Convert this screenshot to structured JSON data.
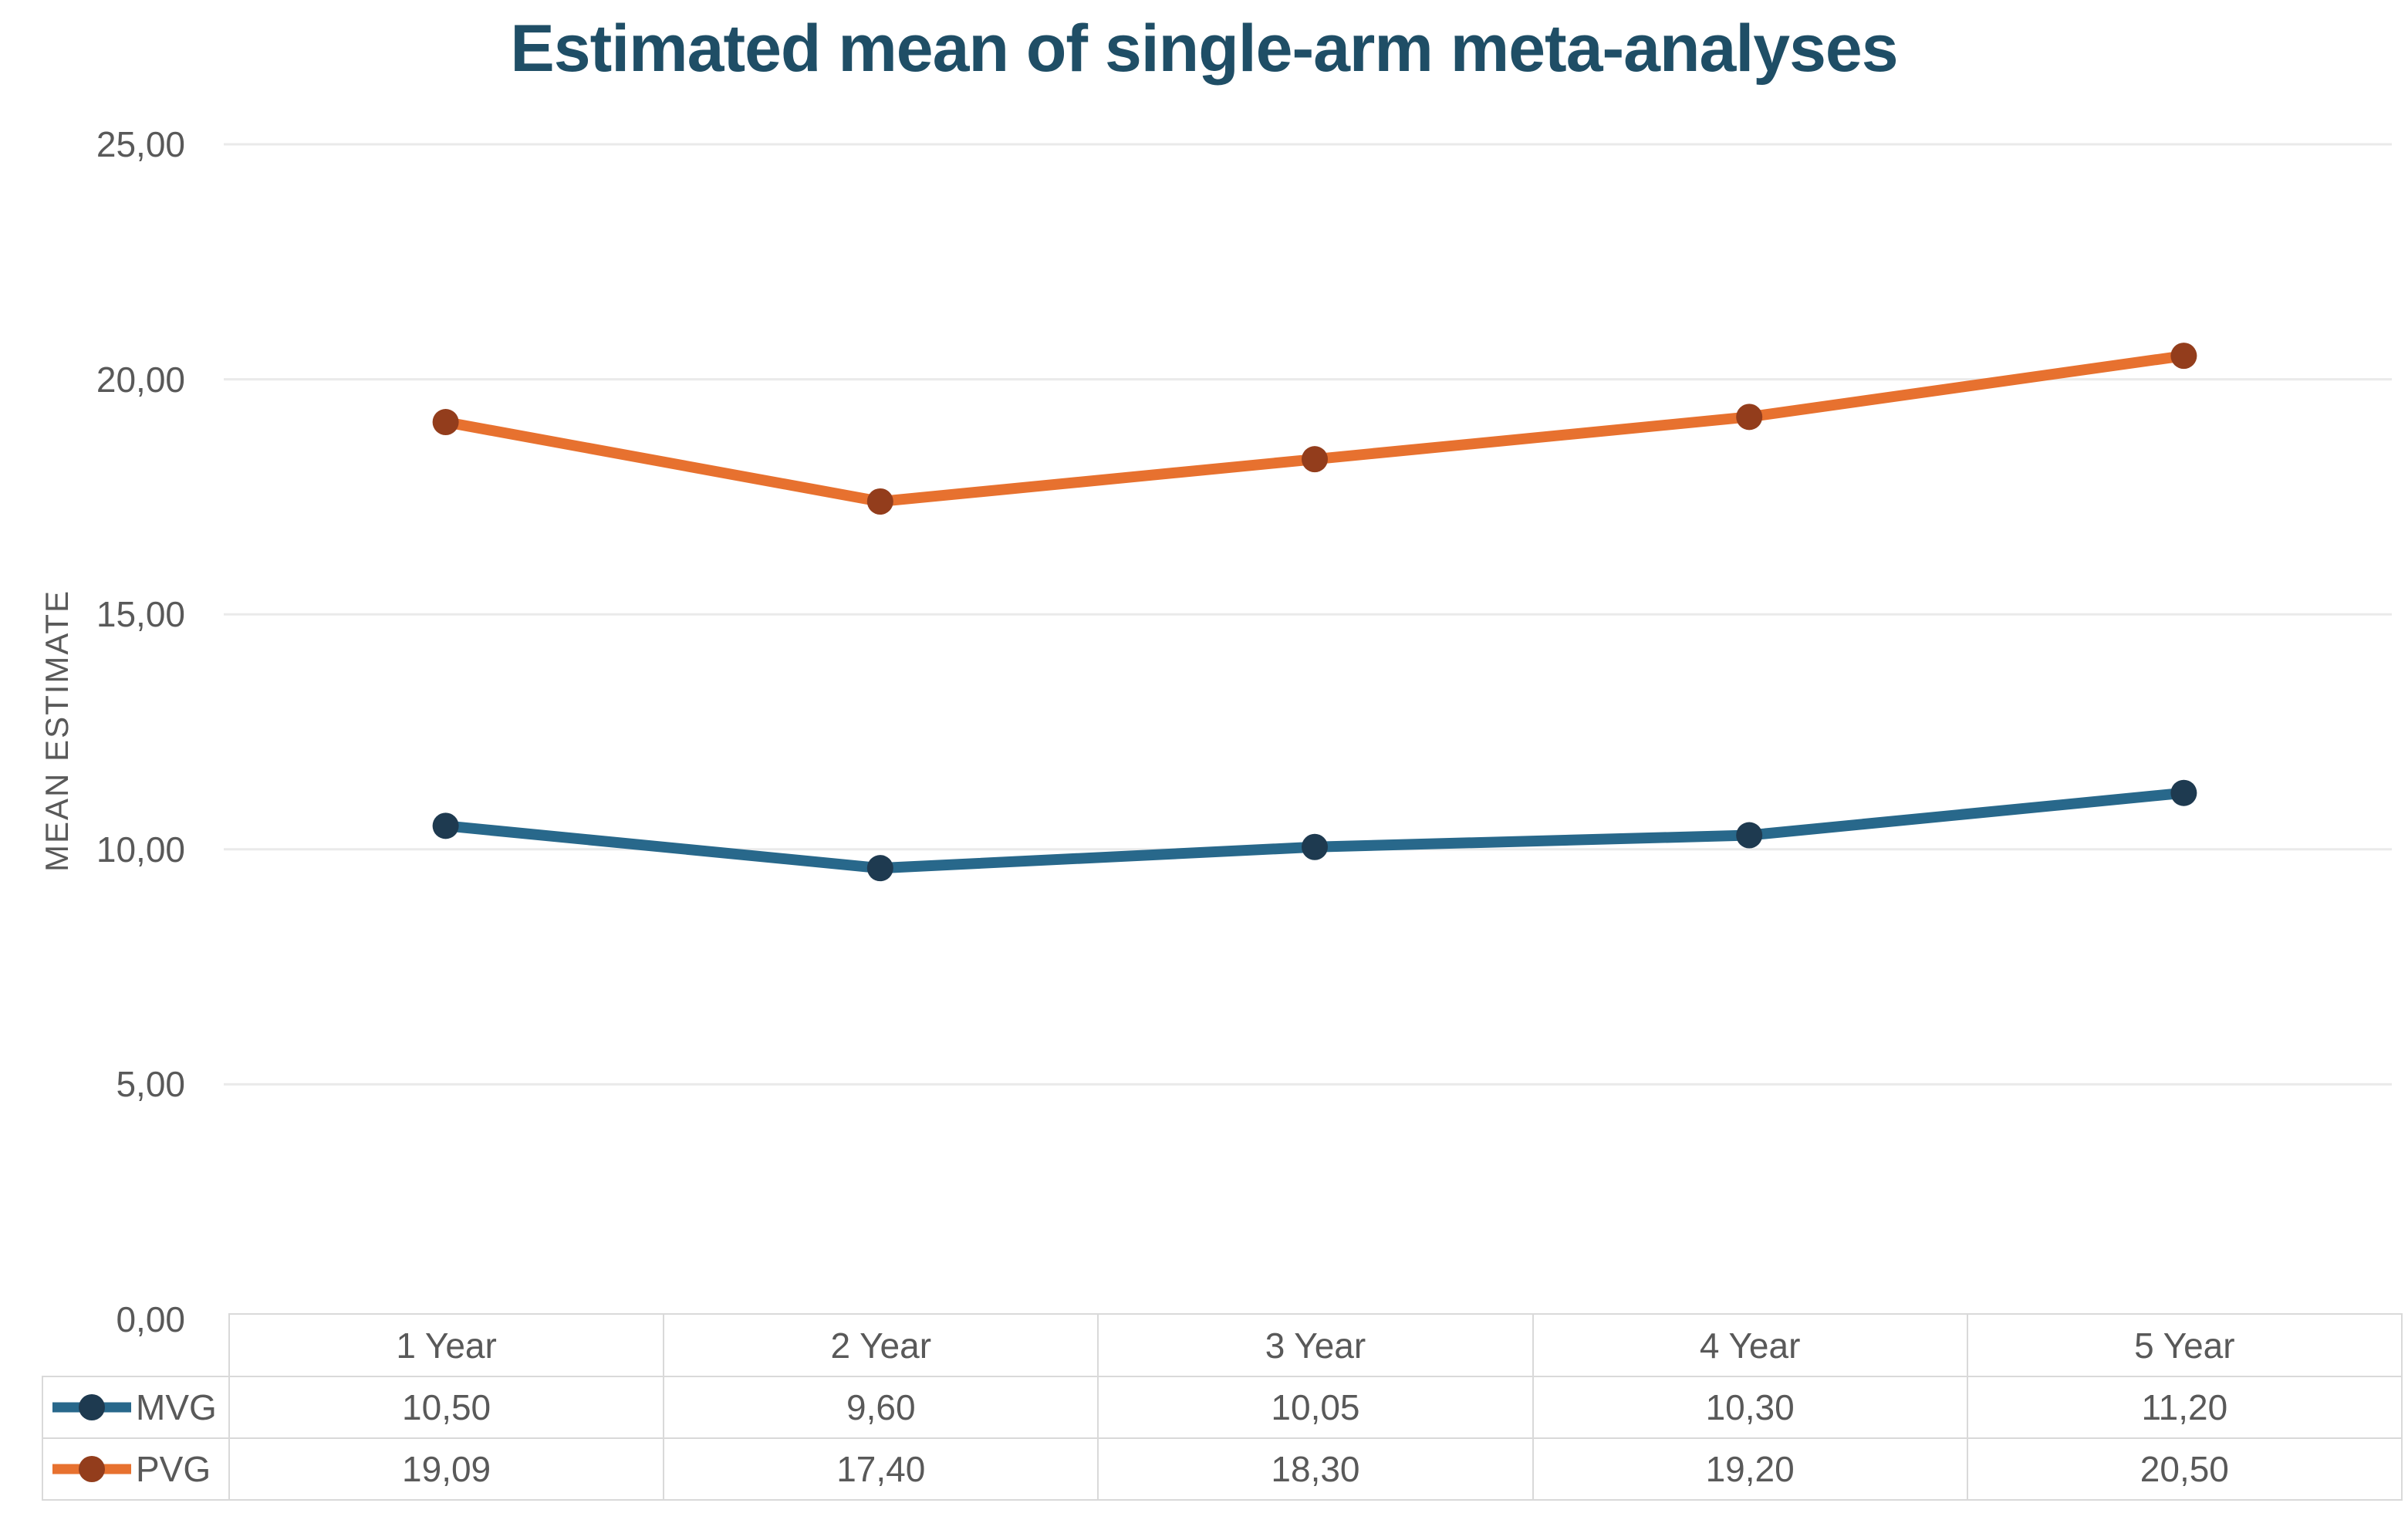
{
  "chart_data": {
    "type": "line",
    "title": "Estimated mean of single-arm meta-analyses",
    "ylabel": "MEAN ESTIMATE",
    "xlabel": "",
    "categories": [
      "1 Year",
      "2 Year",
      "3 Year",
      "4 Year",
      "5 Year"
    ],
    "series": [
      {
        "name": "MVG",
        "values": [
          10.5,
          9.6,
          10.05,
          10.3,
          11.2
        ],
        "display": [
          "10,50",
          "9,60",
          "10,05",
          "10,30",
          "11,20"
        ],
        "line_color": "#28688B",
        "marker_color": "#1E3A50"
      },
      {
        "name": "PVG",
        "values": [
          19.09,
          17.4,
          18.3,
          19.2,
          20.5
        ],
        "display": [
          "19,09",
          "17,40",
          "18,30",
          "19,20",
          "20,50"
        ],
        "line_color": "#E7712F",
        "marker_color": "#933D1C"
      }
    ],
    "ylim": [
      0,
      25
    ],
    "yticks": [
      {
        "value": 0,
        "label": "0,00"
      },
      {
        "value": 5,
        "label": "5,00"
      },
      {
        "value": 10,
        "label": "10,00"
      },
      {
        "value": 15,
        "label": "15,00"
      },
      {
        "value": 20,
        "label": "20,00"
      },
      {
        "value": 25,
        "label": "25,00"
      }
    ],
    "grid": "horizontal",
    "legend_position": "table-left",
    "colors": {
      "title_text": "#1F4E66",
      "axis_text": "#595959",
      "gridline": "#EAEAEA",
      "table_border": "#D9D9D9",
      "background": "#FFFFFF"
    }
  }
}
